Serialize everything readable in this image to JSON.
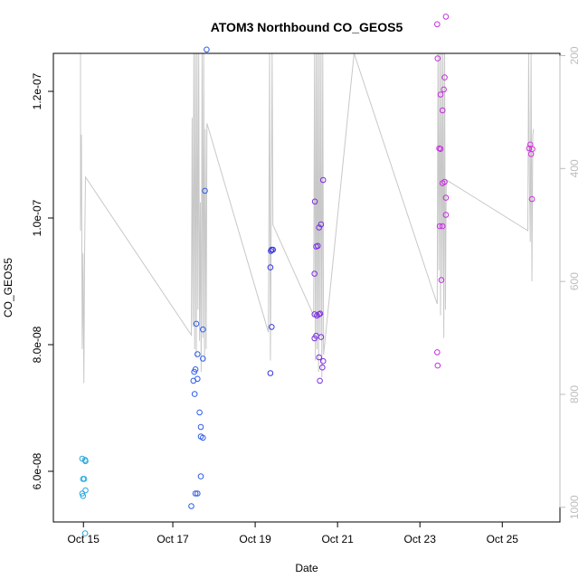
{
  "chart_data": {
    "type": "scatter",
    "title": "ATOM3 Northbound CO_GEOS5",
    "xlabel": "Date",
    "ylabel": "CO_GEOS5",
    "x_ticks": [
      {
        "value": 14.83,
        "label": "Oct 15"
      },
      {
        "value": 17.0,
        "label": "Oct 17"
      },
      {
        "value": 19.0,
        "label": "Oct 19"
      },
      {
        "value": 21.0,
        "label": "Oct 21"
      },
      {
        "value": 23.0,
        "label": "Oct 23"
      },
      {
        "value": 25.0,
        "label": "Oct 25"
      }
    ],
    "xlim": [
      14.1,
      26.4
    ],
    "ylim": [
      5.2e-08,
      1.26e-07
    ],
    "y_ticks": [
      {
        "value": 6e-08,
        "label": "6.0e-08"
      },
      {
        "value": 8e-08,
        "label": "8.0e-08"
      },
      {
        "value": 1e-07,
        "label": "1.0e-07"
      },
      {
        "value": 1.2e-07,
        "label": "1.2e-07"
      }
    ],
    "y2_ticks": [
      {
        "value": 200,
        "label": "200"
      },
      {
        "value": 400,
        "label": "400"
      },
      {
        "value": 600,
        "label": "600"
      },
      {
        "value": 800,
        "label": "800"
      },
      {
        "value": 1000,
        "label": "1000"
      }
    ],
    "y2lim": [
      1026,
      196
    ],
    "y2_reversed": true,
    "grid": false,
    "points": [
      {
        "x": 14.8,
        "y": 6.2e-08,
        "color": "#29a8e0"
      },
      {
        "x": 14.87,
        "y": 6.18e-08,
        "color": "#29a8e0"
      },
      {
        "x": 14.88,
        "y": 6.16e-08,
        "color": "#29a8e0"
      },
      {
        "x": 14.82,
        "y": 5.88e-08,
        "color": "#29a8e0"
      },
      {
        "x": 14.85,
        "y": 5.88e-08,
        "color": "#29a8e0"
      },
      {
        "x": 14.8,
        "y": 5.65e-08,
        "color": "#29a8e0"
      },
      {
        "x": 14.82,
        "y": 5.61e-08,
        "color": "#29a8e0"
      },
      {
        "x": 14.88,
        "y": 5.7e-08,
        "color": "#29a8e0"
      },
      {
        "x": 14.87,
        "y": 5.02e-08,
        "color": "#29a8e0"
      },
      {
        "x": 17.45,
        "y": 5.45e-08,
        "color": "#2e5de8"
      },
      {
        "x": 17.55,
        "y": 5.65e-08,
        "color": "#2e5de8"
      },
      {
        "x": 17.6,
        "y": 5.65e-08,
        "color": "#2e5de8"
      },
      {
        "x": 17.68,
        "y": 5.92e-08,
        "color": "#2e5de8"
      },
      {
        "x": 17.68,
        "y": 6.55e-08,
        "color": "#2e5de8"
      },
      {
        "x": 17.73,
        "y": 6.53e-08,
        "color": "#2e5de8"
      },
      {
        "x": 17.68,
        "y": 6.7e-08,
        "color": "#2e5de8"
      },
      {
        "x": 17.65,
        "y": 6.93e-08,
        "color": "#2e5de8"
      },
      {
        "x": 17.53,
        "y": 7.22e-08,
        "color": "#2e5de8"
      },
      {
        "x": 17.5,
        "y": 7.43e-08,
        "color": "#2e5de8"
      },
      {
        "x": 17.6,
        "y": 7.46e-08,
        "color": "#2e5de8"
      },
      {
        "x": 17.52,
        "y": 7.57e-08,
        "color": "#2e5de8"
      },
      {
        "x": 17.55,
        "y": 7.61e-08,
        "color": "#2e5de8"
      },
      {
        "x": 17.73,
        "y": 7.78e-08,
        "color": "#2e5de8"
      },
      {
        "x": 17.6,
        "y": 7.85e-08,
        "color": "#2e5de8"
      },
      {
        "x": 17.73,
        "y": 8.24e-08,
        "color": "#2e5de8"
      },
      {
        "x": 17.57,
        "y": 8.33e-08,
        "color": "#2e5de8"
      },
      {
        "x": 17.78,
        "y": 1.043e-07,
        "color": "#2e5de8"
      },
      {
        "x": 17.82,
        "y": 1.266e-07,
        "color": "#2e5de8"
      },
      {
        "x": 19.37,
        "y": 7.55e-08,
        "color": "#3a36e0"
      },
      {
        "x": 19.4,
        "y": 8.28e-08,
        "color": "#3a36e0"
      },
      {
        "x": 19.37,
        "y": 9.22e-08,
        "color": "#3a36e0"
      },
      {
        "x": 19.38,
        "y": 9.48e-08,
        "color": "#3a36e0"
      },
      {
        "x": 19.4,
        "y": 9.5e-08,
        "color": "#3a36e0"
      },
      {
        "x": 19.43,
        "y": 9.5e-08,
        "color": "#3a36e0"
      },
      {
        "x": 20.44,
        "y": 8.1e-08,
        "color": "#7a2ee0"
      },
      {
        "x": 20.48,
        "y": 8.14e-08,
        "color": "#7a2ee0"
      },
      {
        "x": 20.44,
        "y": 8.48e-08,
        "color": "#7a2ee0"
      },
      {
        "x": 20.5,
        "y": 8.46e-08,
        "color": "#7a2ee0"
      },
      {
        "x": 20.55,
        "y": 8.48e-08,
        "color": "#7a2ee0"
      },
      {
        "x": 20.58,
        "y": 8.49e-08,
        "color": "#7a2ee0"
      },
      {
        "x": 20.6,
        "y": 8.12e-08,
        "color": "#7a2ee0"
      },
      {
        "x": 20.44,
        "y": 9.12e-08,
        "color": "#7a2ee0"
      },
      {
        "x": 20.48,
        "y": 9.55e-08,
        "color": "#7a2ee0"
      },
      {
        "x": 20.52,
        "y": 9.56e-08,
        "color": "#7a2ee0"
      },
      {
        "x": 20.55,
        "y": 9.85e-08,
        "color": "#7a2ee0"
      },
      {
        "x": 20.6,
        "y": 9.9e-08,
        "color": "#7a2ee0"
      },
      {
        "x": 20.45,
        "y": 1.026e-07,
        "color": "#7a2ee0"
      },
      {
        "x": 20.65,
        "y": 1.06e-07,
        "color": "#7a2ee0"
      },
      {
        "x": 20.55,
        "y": 7.8e-08,
        "color": "#7a2ee0"
      },
      {
        "x": 20.63,
        "y": 7.64e-08,
        "color": "#7a2ee0"
      },
      {
        "x": 20.65,
        "y": 7.74e-08,
        "color": "#7a2ee0"
      },
      {
        "x": 20.57,
        "y": 7.43e-08,
        "color": "#7a2ee0"
      },
      {
        "x": 23.42,
        "y": 7.88e-08,
        "color": "#c62ee0"
      },
      {
        "x": 23.43,
        "y": 7.67e-08,
        "color": "#c62ee0"
      },
      {
        "x": 23.42,
        "y": 1.306e-07,
        "color": "#c62ee0"
      },
      {
        "x": 23.43,
        "y": 1.252e-07,
        "color": "#c62ee0"
      },
      {
        "x": 23.5,
        "y": 1.195e-07,
        "color": "#c62ee0"
      },
      {
        "x": 23.58,
        "y": 1.203e-07,
        "color": "#c62ee0"
      },
      {
        "x": 23.6,
        "y": 1.222e-07,
        "color": "#c62ee0"
      },
      {
        "x": 23.55,
        "y": 1.17e-07,
        "color": "#c62ee0"
      },
      {
        "x": 23.47,
        "y": 1.11e-07,
        "color": "#c62ee0"
      },
      {
        "x": 23.5,
        "y": 1.109e-07,
        "color": "#c62ee0"
      },
      {
        "x": 23.55,
        "y": 1.055e-07,
        "color": "#c62ee0"
      },
      {
        "x": 23.6,
        "y": 1.057e-07,
        "color": "#c62ee0"
      },
      {
        "x": 23.63,
        "y": 1.032e-07,
        "color": "#c62ee0"
      },
      {
        "x": 23.63,
        "y": 1.005e-07,
        "color": "#c62ee0"
      },
      {
        "x": 23.48,
        "y": 9.87e-08,
        "color": "#c62ee0"
      },
      {
        "x": 23.55,
        "y": 9.87e-08,
        "color": "#c62ee0"
      },
      {
        "x": 23.52,
        "y": 9.02e-08,
        "color": "#c62ee0"
      },
      {
        "x": 23.63,
        "y": 1.318e-07,
        "color": "#c62ee0"
      },
      {
        "x": 25.65,
        "y": 1.11e-07,
        "color": "#d62ee0"
      },
      {
        "x": 25.68,
        "y": 1.116e-07,
        "color": "#d62ee0"
      },
      {
        "x": 25.7,
        "y": 1.101e-07,
        "color": "#d62ee0"
      },
      {
        "x": 25.73,
        "y": 1.109e-07,
        "color": "#d62ee0"
      },
      {
        "x": 25.72,
        "y": 1.03e-07,
        "color": "#d62ee0"
      }
    ],
    "trace": {
      "label_axis": "y2",
      "x": [
        14.76,
        14.76,
        14.78,
        14.8,
        14.82,
        14.84,
        14.86,
        14.88,
        17.45,
        17.47,
        17.49,
        17.51,
        17.53,
        17.55,
        17.57,
        17.59,
        17.61,
        17.63,
        17.65,
        17.67,
        17.69,
        17.71,
        17.73,
        17.75,
        17.77,
        17.79,
        17.81,
        17.83,
        19.32,
        19.35,
        19.37,
        19.39,
        19.41,
        19.43,
        20.42,
        20.44,
        20.46,
        20.48,
        20.5,
        20.52,
        20.54,
        20.56,
        20.58,
        20.6,
        20.62,
        20.64,
        20.66,
        21.4,
        23.42,
        23.44,
        23.46,
        23.48,
        23.5,
        23.52,
        23.54,
        23.56,
        23.58,
        23.6,
        23.62,
        23.64,
        25.62,
        25.64,
        25.66,
        25.68,
        25.7,
        25.72,
        25.74,
        25.76
      ],
      "y2": [
        196,
        510,
        340,
        720,
        550,
        780,
        540,
        415,
        695,
        310,
        680,
        196,
        720,
        196,
        735,
        196,
        650,
        196,
        705,
        460,
        760,
        196,
        700,
        196,
        740,
        330,
        720,
        320,
        690,
        196,
        740,
        510,
        196,
        500,
        660,
        196,
        740,
        196,
        720,
        196,
        760,
        196,
        700,
        196,
        770,
        196,
        730,
        196,
        640,
        196,
        580,
        196,
        660,
        196,
        600,
        196,
        700,
        196,
        650,
        420,
        510,
        196,
        420,
        530,
        196,
        600,
        340,
        330
      ]
    }
  }
}
